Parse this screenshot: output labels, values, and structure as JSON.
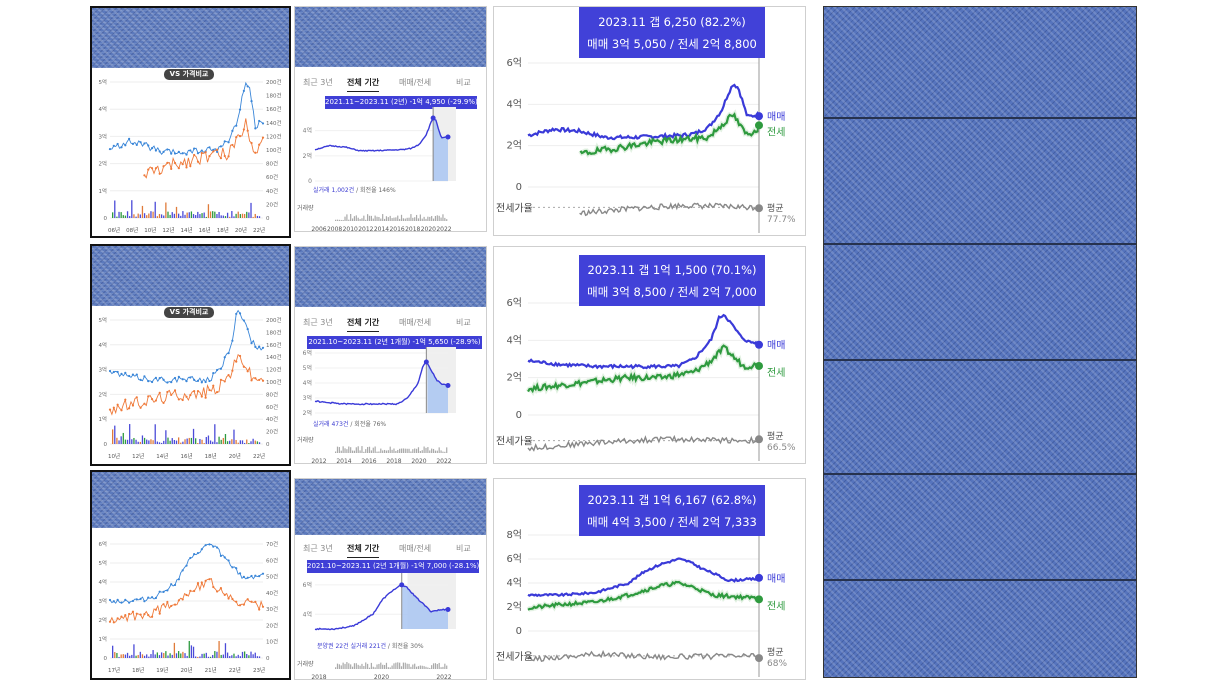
{
  "vs_badge": "VS 가격비교",
  "tab_labels": [
    "최근 3년",
    "전체 기간",
    "매매/전세",
    "비교"
  ],
  "series_names": {
    "sale": "매매",
    "jeonse": "전세",
    "ratio": "전세가율",
    "avg": "평균",
    "volume": "거래량"
  },
  "rows": [
    {
      "compare": {
        "x_ticks": [
          "06년",
          "08년",
          "10년",
          "12년",
          "14년",
          "16년",
          "18년",
          "20년",
          "22년"
        ],
        "y_left": [
          "0",
          "1억",
          "2억",
          "3억",
          "4억",
          "5억"
        ],
        "y_right": [
          "0",
          "20건",
          "40건",
          "60건",
          "80건",
          "100건",
          "120건",
          "140건",
          "160건",
          "180건",
          "200건"
        ]
      },
      "full": {
        "badge": "2021.11~2023.11 (2년) -1억 4,950 (-29.9%)",
        "y_ticks": [
          "0",
          "2억",
          "4억"
        ],
        "x_ticks": [
          "2006",
          "2008",
          "2010",
          "2012",
          "2014",
          "2016",
          "2018",
          "2020",
          "2022"
        ],
        "trades_text": "실거래 1,002건",
        "turnover_text": "/ 회전율 146%",
        "volume_label": "거래량"
      },
      "detail": {
        "tooltip_line1": "2023.11  갭 6,250 (82.2%)",
        "tooltip_line2": "매매 3억 5,050 / 전세 2억 8,800",
        "y_ticks": [
          "0",
          "2억",
          "4억",
          "6억"
        ],
        "avg_value": "77.7%"
      }
    },
    {
      "compare": {
        "x_ticks": [
          "10년",
          "12년",
          "14년",
          "16년",
          "18년",
          "20년",
          "22년"
        ],
        "y_left": [
          "0",
          "1억",
          "2억",
          "3억",
          "4억",
          "5억"
        ],
        "y_right": [
          "0",
          "20건",
          "40건",
          "60건",
          "80건",
          "100건",
          "120건",
          "140건",
          "160건",
          "180건",
          "200건"
        ]
      },
      "full": {
        "badge": "2021.10~2023.11 (2년 1개월) -1억 5,650 (-28.9%)",
        "y_ticks": [
          "2억",
          "3억",
          "4억",
          "5억",
          "6억"
        ],
        "x_ticks": [
          "2012",
          "2014",
          "2016",
          "2018",
          "2020",
          "2022"
        ],
        "trades_text": "실거래 473건",
        "turnover_text": "/ 회전율 76%",
        "volume_label": "거래량"
      },
      "detail": {
        "tooltip_line1": "2023.11  갭 1억 1,500 (70.1%)",
        "tooltip_line2": "매매 3억 8,500 / 전세 2억 7,000",
        "y_ticks": [
          "0",
          "2억",
          "4억",
          "6억"
        ],
        "avg_value": "66.5%"
      }
    },
    {
      "compare": {
        "x_ticks": [
          "17년",
          "18년",
          "19년",
          "20년",
          "21년",
          "22년",
          "23년"
        ],
        "y_left": [
          "0",
          "1억",
          "2억",
          "3억",
          "4억",
          "5억",
          "6억"
        ],
        "y_right": [
          "0",
          "10건",
          "20건",
          "30건",
          "40건",
          "50건",
          "60건",
          "70건"
        ]
      },
      "full": {
        "badge": "2021.10~2023.11 (2년 1개월) -1억 7,000 (-28.1%)",
        "y_ticks": [
          "4억",
          "6억"
        ],
        "x_ticks": [
          "2018",
          "2020",
          "2022"
        ],
        "trades_text": "분양권 22건 실거래 221건",
        "turnover_text": "/ 회전율 30%",
        "volume_label": "거래량"
      },
      "detail": {
        "tooltip_line1": "2023.11  갭 1억 6,167 (62.8%)",
        "tooltip_line2": "매매 4억 3,500 / 전세 2억 7,333",
        "y_ticks": [
          "0",
          "2억",
          "4억",
          "6억",
          "8억"
        ],
        "avg_value": "68%"
      }
    }
  ],
  "chart_data": [
    {
      "type": "line",
      "title": "",
      "xlabel": "",
      "ylabel": "",
      "x_range": [
        "2006",
        "2023.11"
      ],
      "ylim": [
        0,
        6
      ],
      "unit": "억",
      "series": [
        {
          "name": "매매",
          "x": [
            2006,
            2008,
            2010,
            2012,
            2014,
            2016,
            2018,
            2019,
            2020,
            2021,
            2021.5,
            2021.9,
            2022.3,
            2022.7,
            2023,
            2023.9
          ],
          "values": [
            2.5,
            2.8,
            2.7,
            2.4,
            2.4,
            2.45,
            2.5,
            2.6,
            2.9,
            3.7,
            4.5,
            5.0,
            4.8,
            4.0,
            3.4,
            3.505
          ]
        },
        {
          "name": "전세",
          "x": [
            2010,
            2012,
            2014,
            2016,
            2018,
            2020,
            2021,
            2021.9,
            2022.5,
            2023,
            2023.9
          ],
          "values": [
            1.6,
            1.8,
            2.0,
            2.2,
            2.3,
            2.4,
            3.0,
            3.5,
            2.9,
            2.5,
            2.88
          ]
        },
        {
          "name": "전세가율",
          "x": [
            2010,
            2014,
            2018,
            2023.9
          ],
          "values": [
            65,
            75,
            82,
            77.7
          ]
        }
      ]
    },
    {
      "type": "line",
      "title": "",
      "xlabel": "",
      "ylabel": "",
      "x_range": [
        "2010",
        "2023.11"
      ],
      "ylim": [
        0,
        6
      ],
      "unit": "억",
      "series": [
        {
          "name": "매매",
          "x": [
            2010,
            2012,
            2014,
            2016,
            2018,
            2019,
            2020,
            2021,
            2021.5,
            2021.8,
            2022.3,
            2022.8,
            2023.3,
            2023.9
          ],
          "values": [
            2.9,
            2.7,
            2.6,
            2.6,
            2.6,
            2.6,
            3.0,
            4.0,
            5.2,
            5.4,
            4.8,
            4.2,
            3.9,
            3.85
          ]
        },
        {
          "name": "전세",
          "x": [
            2010,
            2012,
            2014,
            2016,
            2018,
            2020,
            2021,
            2021.8,
            2022.5,
            2023,
            2023.9
          ],
          "values": [
            1.4,
            1.6,
            1.8,
            2.0,
            2.0,
            2.3,
            2.9,
            3.6,
            3.0,
            2.6,
            2.7
          ]
        },
        {
          "name": "전세가율",
          "x": [
            2010,
            2014,
            2018,
            2023.9
          ],
          "values": [
            50,
            62,
            70,
            66.5
          ]
        }
      ]
    },
    {
      "type": "line",
      "title": "",
      "xlabel": "",
      "ylabel": "",
      "x_range": [
        "2017",
        "2023.11"
      ],
      "ylim": [
        0,
        8
      ],
      "unit": "억",
      "series": [
        {
          "name": "매매",
          "x": [
            2017,
            2018,
            2019,
            2020,
            2020.5,
            2021,
            2021.5,
            2021.8,
            2022.2,
            2022.7,
            2023,
            2023.5,
            2023.9
          ],
          "values": [
            3.0,
            3.0,
            3.2,
            4.0,
            5.0,
            5.6,
            6.0,
            5.8,
            5.2,
            4.6,
            4.2,
            4.3,
            4.35
          ]
        },
        {
          "name": "전세",
          "x": [
            2017,
            2018,
            2019,
            2020,
            2021,
            2021.5,
            2022,
            2022.5,
            2023,
            2023.9
          ],
          "values": [
            1.9,
            2.2,
            2.4,
            3.0,
            3.8,
            4.0,
            3.6,
            3.0,
            2.9,
            2.73
          ]
        },
        {
          "name": "전세가율",
          "x": [
            2017,
            2019,
            2021,
            2023.9
          ],
          "values": [
            60,
            72,
            66,
            68
          ]
        }
      ]
    }
  ]
}
